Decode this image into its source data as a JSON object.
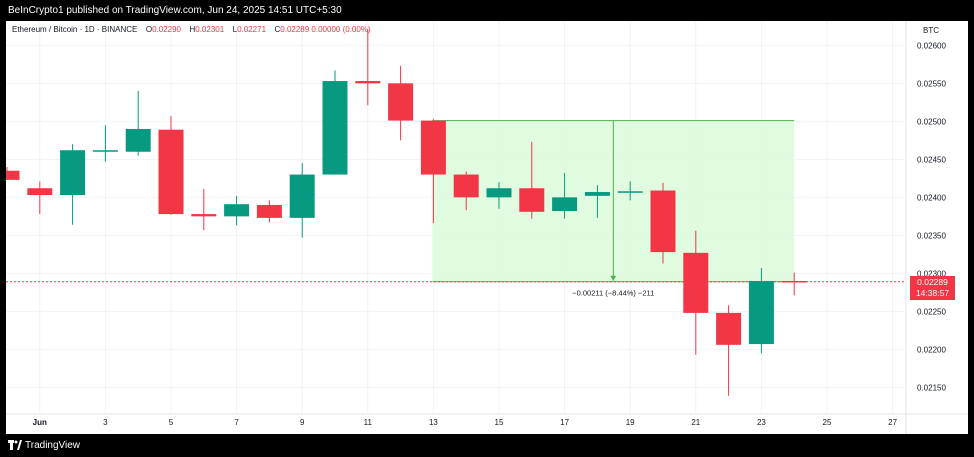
{
  "header": {
    "publisher_text": "BeInCrypto1 published on TradingView.com, Jun 24, 2025 14:51 UTC+5:30"
  },
  "legend": {
    "symbol": "Ethereum / Bitcoin · 1D · BINANCE",
    "open_label": "O",
    "open": "0.02290",
    "high_label": "H",
    "high": "0.02301",
    "low_label": "L",
    "low": "0.02271",
    "close_label": "C",
    "close": "0.02289",
    "change": "0.00000 (0.00%)"
  },
  "price_axis": {
    "currency": "BTC",
    "labels": [
      "0.02600",
      "0.02550",
      "0.02500",
      "0.02450",
      "0.02400",
      "0.02350",
      "0.02300",
      "0.02250",
      "0.02200",
      "0.02150"
    ]
  },
  "time_axis": {
    "labels": [
      "Jun",
      "3",
      "5",
      "7",
      "9",
      "11",
      "13",
      "15",
      "17",
      "19",
      "21",
      "23",
      "25",
      "27"
    ]
  },
  "current_price": {
    "price": "0.02289",
    "countdown": "14:38:57",
    "color": "#f23645"
  },
  "range_measure": {
    "label": "−0.00211 (−8.44%) −211",
    "color": "#4caf50"
  },
  "footer": {
    "brand": "TradingView"
  },
  "colors": {
    "up": "#089981",
    "down": "#f23645",
    "grid": "#f0f3fa",
    "range_fill": "#dcfadc"
  },
  "chart_data": {
    "type": "candlestick",
    "x": [
      "May 31",
      "Jun 1",
      "Jun 2",
      "Jun 3",
      "Jun 4",
      "Jun 5",
      "Jun 6",
      "Jun 7",
      "Jun 8",
      "Jun 9",
      "Jun 10",
      "Jun 11",
      "Jun 12",
      "Jun 13",
      "Jun 14",
      "Jun 15",
      "Jun 16",
      "Jun 17",
      "Jun 18",
      "Jun 19",
      "Jun 20",
      "Jun 21",
      "Jun 22",
      "Jun 23",
      "Jun 24"
    ],
    "series": [
      {
        "open": [
          0.02435,
          0.02412,
          0.02403,
          0.0246,
          0.0246,
          0.02489,
          0.02378,
          0.02375,
          0.0239,
          0.02373,
          0.0243,
          0.02553,
          0.0255,
          0.02501,
          0.0243,
          0.024,
          0.02412,
          0.02382,
          0.02402,
          0.02407,
          0.02409,
          0.02327,
          0.02248,
          0.02207,
          0.0229
        ],
        "high": [
          0.0244,
          0.02421,
          0.0247,
          0.02495,
          0.0254,
          0.02507,
          0.02411,
          0.02402,
          0.02396,
          0.02445,
          0.02567,
          0.02621,
          0.02573,
          0.02503,
          0.02434,
          0.0242,
          0.02473,
          0.02432,
          0.02416,
          0.02421,
          0.02419,
          0.02356,
          0.02258,
          0.02307,
          0.02301
        ],
        "low": [
          0.02423,
          0.02378,
          0.02364,
          0.02447,
          0.02455,
          0.02377,
          0.02357,
          0.02363,
          0.02367,
          0.02347,
          0.0243,
          0.02521,
          0.02475,
          0.02366,
          0.02383,
          0.02385,
          0.02372,
          0.02372,
          0.02373,
          0.02396,
          0.02313,
          0.02193,
          0.02139,
          0.02195,
          0.02271
        ],
        "close": [
          0.02423,
          0.02403,
          0.02462,
          0.02462,
          0.0249,
          0.02378,
          0.02375,
          0.02391,
          0.02373,
          0.0243,
          0.02553,
          0.0255,
          0.02501,
          0.0243,
          0.024,
          0.02412,
          0.02381,
          0.024,
          0.02407,
          0.02408,
          0.02328,
          0.02248,
          0.02206,
          0.0229,
          0.02289
        ]
      }
    ],
    "ylim": [
      0.02115,
      0.02632
    ],
    "grid": true
  }
}
